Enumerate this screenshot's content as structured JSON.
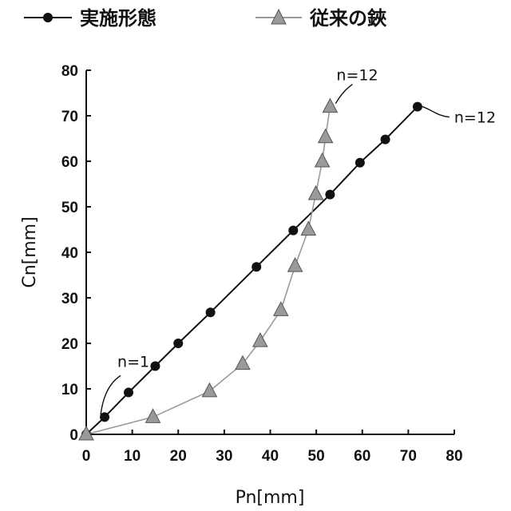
{
  "chart_data": {
    "type": "line",
    "xlabel": "Pn[mm]",
    "ylabel": "Cn[mm]",
    "xlim": [
      0,
      80
    ],
    "ylim": [
      0,
      80
    ],
    "xticks": [
      "0",
      "10",
      "20",
      "30",
      "40",
      "50",
      "60",
      "70",
      "80"
    ],
    "yticks": [
      "0",
      "10",
      "20",
      "30",
      "40",
      "50",
      "60",
      "70",
      "80"
    ],
    "grid": false,
    "legend": "top",
    "series": [
      {
        "name": "実施形態",
        "marker": "circle",
        "color": "#111111",
        "x": [
          0,
          4,
          9.2,
          15,
          20,
          27,
          37,
          45,
          53,
          59.5,
          65,
          72
        ],
        "y": [
          0,
          3.8,
          9.2,
          15,
          20,
          26.8,
          36.8,
          44.8,
          52.7,
          59.7,
          64.8,
          72
        ]
      },
      {
        "name": "従来の鋏",
        "marker": "triangle",
        "color": "#9a9a9a",
        "x": [
          0,
          14.5,
          26.8,
          34,
          37.8,
          42.3,
          45.4,
          48.3,
          49.9,
          51.3,
          52,
          53
        ],
        "y": [
          0,
          3.8,
          9.5,
          15.5,
          20.5,
          27.3,
          37,
          45,
          52.8,
          60,
          65.3,
          72
        ]
      }
    ],
    "annotations": [
      {
        "text": "n=1",
        "series": 0,
        "point": 1
      },
      {
        "text": "n=12",
        "series": 1,
        "point": 11
      },
      {
        "text": "n=12",
        "series": 0,
        "point": 11
      }
    ]
  }
}
